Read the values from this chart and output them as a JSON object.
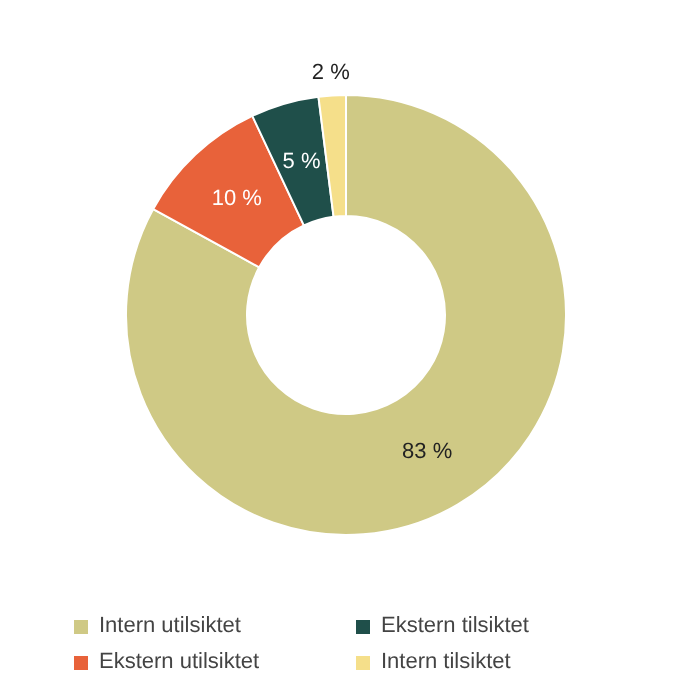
{
  "chart_data": {
    "type": "donut",
    "categories": [
      "Intern utilsiktet",
      "Ekstern utilsiktet",
      "Ekstern tilsiktet",
      "Intern tilsiktet"
    ],
    "values": [
      83,
      10,
      5,
      2
    ],
    "colors": [
      "#cfc985",
      "#e8623a",
      "#1f4f4a",
      "#f5df8a"
    ],
    "value_labels": [
      "83 %",
      "10 %",
      "5 %",
      "2 %"
    ],
    "legend": "bottom"
  }
}
